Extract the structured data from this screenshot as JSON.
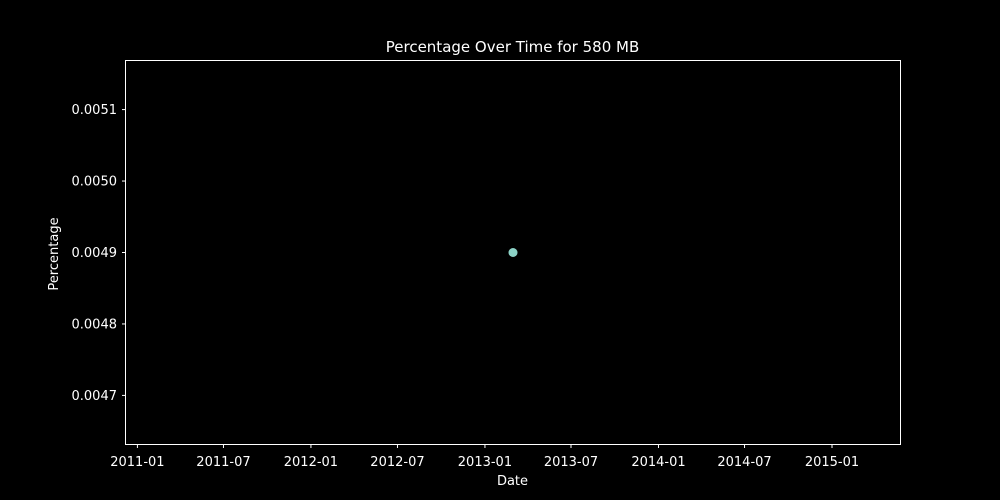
{
  "chart_data": {
    "type": "scatter",
    "title": "Percentage Over Time for 580 MB",
    "xlabel": "Date",
    "ylabel": "Percentage",
    "points": [
      {
        "x": "2013-03-01",
        "y": 0.0049
      }
    ],
    "xlim": [
      "2010-12-08",
      "2015-05-24"
    ],
    "ylim": [
      0.004632,
      0.005168
    ],
    "x_ticks": [
      {
        "date": "2011-01-01",
        "label": "2011-01"
      },
      {
        "date": "2011-07-01",
        "label": "2011-07"
      },
      {
        "date": "2012-01-01",
        "label": "2012-01"
      },
      {
        "date": "2012-07-01",
        "label": "2012-07"
      },
      {
        "date": "2013-01-01",
        "label": "2013-01"
      },
      {
        "date": "2013-07-01",
        "label": "2013-07"
      },
      {
        "date": "2014-01-01",
        "label": "2014-01"
      },
      {
        "date": "2014-07-01",
        "label": "2014-07"
      },
      {
        "date": "2015-01-01",
        "label": "2015-01"
      }
    ],
    "y_ticks": [
      {
        "value": 0.0047,
        "label": "0.0047"
      },
      {
        "value": 0.0048,
        "label": "0.0048"
      },
      {
        "value": 0.0049,
        "label": "0.0049"
      },
      {
        "value": 0.005,
        "label": "0.0050"
      },
      {
        "value": 0.0051,
        "label": "0.0051"
      }
    ],
    "grid": false,
    "legend": "none",
    "colors": {
      "background": "#000000",
      "axes": "#ffffff",
      "text": "#ffffff",
      "point": "#8dd3c7"
    }
  }
}
